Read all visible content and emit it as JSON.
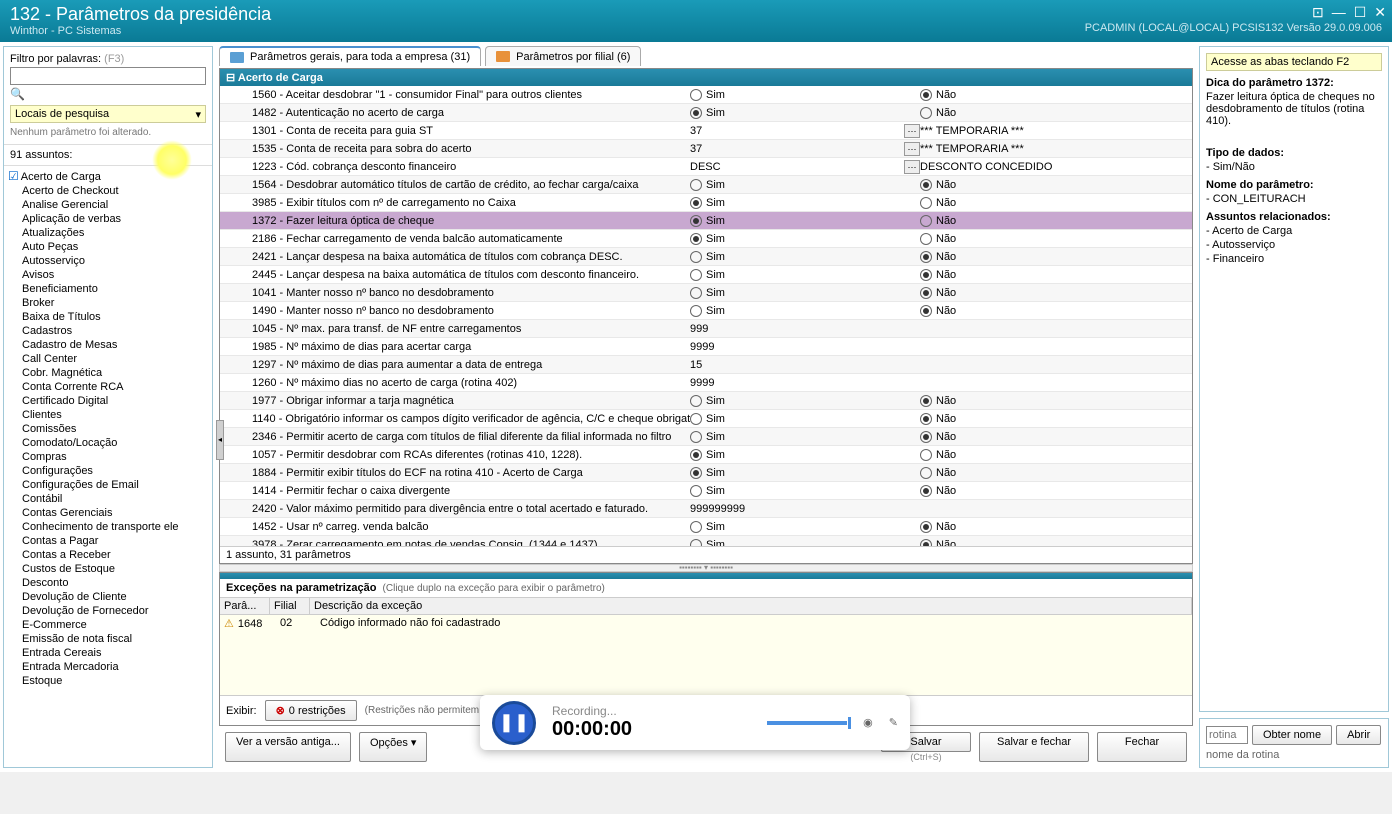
{
  "titlebar": {
    "title": "132 - Parâmetros da presidência",
    "subtitle": "Winthor - PC Sistemas",
    "right_info": "PCADMIN (LOCAL@LOCAL)   PCSIS132  Versão  29.0.09.006"
  },
  "filter": {
    "label": "Filtro por palavras:",
    "hint": "(F3)",
    "locais": "Locais de pesquisa",
    "status": "Nenhum parâmetro foi alterado."
  },
  "subjects": {
    "header": "91 assuntos:",
    "items": [
      {
        "label": "Acerto de Carga",
        "checked": true
      },
      {
        "label": "Acerto de Checkout"
      },
      {
        "label": "Analise Gerencial"
      },
      {
        "label": "Aplicação de verbas"
      },
      {
        "label": "Atualizações"
      },
      {
        "label": "Auto Peças"
      },
      {
        "label": "Autosserviço"
      },
      {
        "label": "Avisos"
      },
      {
        "label": "Beneficiamento"
      },
      {
        "label": "Broker"
      },
      {
        "label": "Baixa de Títulos"
      },
      {
        "label": "Cadastros"
      },
      {
        "label": "Cadastro de Mesas"
      },
      {
        "label": "Call Center"
      },
      {
        "label": "Cobr. Magnética"
      },
      {
        "label": "Conta Corrente RCA"
      },
      {
        "label": "Certificado Digital"
      },
      {
        "label": "Clientes"
      },
      {
        "label": "Comissões"
      },
      {
        "label": "Comodato/Locação"
      },
      {
        "label": "Compras"
      },
      {
        "label": "Configurações"
      },
      {
        "label": "Configurações de Email"
      },
      {
        "label": "Contábil"
      },
      {
        "label": "Contas Gerenciais"
      },
      {
        "label": "Conhecimento de transporte ele"
      },
      {
        "label": "Contas a Pagar"
      },
      {
        "label": "Contas a Receber"
      },
      {
        "label": "Custos de Estoque"
      },
      {
        "label": "Desconto"
      },
      {
        "label": "Devolução de Cliente"
      },
      {
        "label": "Devolução de Fornecedor"
      },
      {
        "label": "E-Commerce"
      },
      {
        "label": "Emissão de nota fiscal"
      },
      {
        "label": "Entrada Cereais"
      },
      {
        "label": "Entrada Mercadoria"
      },
      {
        "label": "Estoque"
      }
    ]
  },
  "tabs": {
    "gerais": "Parâmetros gerais, para toda a empresa  (31)",
    "filial": "Parâmetros por filial  (6)"
  },
  "grid": {
    "group_header": "Acerto de Carga",
    "rows": [
      {
        "desc": "1560 - Aceitar desdobrar \"1 - consumidor Final\" para outros clientes",
        "type": "radio",
        "sim": false,
        "nao": true
      },
      {
        "desc": "1482 - Autenticação no acerto de carga",
        "type": "radio",
        "sim": true,
        "nao": false
      },
      {
        "desc": "1301 - Conta de receita para guia ST",
        "type": "text",
        "val1": "37",
        "btn": true,
        "val2": "*** TEMPORARIA ***"
      },
      {
        "desc": "1535 - Conta de receita para sobra do acerto",
        "type": "text",
        "val1": "37",
        "btn": true,
        "val2": "*** TEMPORARIA ***"
      },
      {
        "desc": "1223 - Cód. cobrança desconto financeiro",
        "type": "text",
        "val1": "DESC",
        "btn": true,
        "val2": "DESCONTO CONCEDIDO"
      },
      {
        "desc": "1564 - Desdobrar automático títulos de cartão de crédito, ao fechar carga/caixa",
        "type": "radio",
        "sim": false,
        "nao": true
      },
      {
        "desc": "3985 - Exibir títulos com nº de carregamento no Caixa",
        "type": "radio",
        "sim": true,
        "nao": false
      },
      {
        "desc": "1372 - Fazer leitura óptica de cheque",
        "type": "radio",
        "sim": true,
        "nao": false,
        "selected": true
      },
      {
        "desc": "2186 - Fechar carregamento de venda balcão automaticamente",
        "type": "radio",
        "sim": true,
        "nao": false
      },
      {
        "desc": "2421 - Lançar despesa na baixa automática de títulos com cobrança DESC.",
        "type": "radio",
        "sim": false,
        "nao": true
      },
      {
        "desc": "2445 - Lançar despesa na baixa automática de títulos com desconto financeiro.",
        "type": "radio",
        "sim": false,
        "nao": true
      },
      {
        "desc": "1041 - Manter nosso nº banco no desdobramento",
        "type": "radio",
        "sim": false,
        "nao": true
      },
      {
        "desc": "1490 - Manter nosso nº banco no desdobramento",
        "type": "radio",
        "sim": false,
        "nao": true
      },
      {
        "desc": "1045 - Nº max. para transf. de NF entre carregamentos",
        "type": "text",
        "val1": "999"
      },
      {
        "desc": "1985 - Nº máximo de dias para acertar carga",
        "type": "text",
        "val1": "9999"
      },
      {
        "desc": "1297 - Nº máximo de dias para aumentar a data de entrega",
        "type": "text",
        "val1": "15"
      },
      {
        "desc": "1260 - Nº máximo dias no acerto de carga (rotina 402)",
        "type": "text",
        "val1": "9999"
      },
      {
        "desc": "1977 - Obrigar informar a tarja magnética",
        "type": "radio",
        "sim": false,
        "nao": true
      },
      {
        "desc": "1140 - Obrigatório informar os campos dígito verificador de agência, C/C e cheque obrigatório",
        "type": "radio",
        "sim": false,
        "nao": true
      },
      {
        "desc": "2346 - Permitir acerto de carga com títulos de filial diferente da filial informada no filtro",
        "type": "radio",
        "sim": false,
        "nao": true
      },
      {
        "desc": "1057 - Permitir desdobrar com RCAs diferentes (rotinas 410, 1228).",
        "type": "radio",
        "sim": true,
        "nao": false
      },
      {
        "desc": "1884 - Permitir exibir títulos do ECF na rotina 410 - Acerto de Carga",
        "type": "radio",
        "sim": true,
        "nao": false
      },
      {
        "desc": "1414 - Permitir fechar o caixa divergente",
        "type": "radio",
        "sim": false,
        "nao": true
      },
      {
        "desc": "    2420 - Valor máximo permitido para divergência entre o total acertado e faturado.",
        "type": "text",
        "val1": "999999999"
      },
      {
        "desc": "1452 - Usar nº carreg. venda balcão",
        "type": "radio",
        "sim": false,
        "nao": true
      },
      {
        "desc": "    3978 - Zerar carregamento em notas de vendas Consig. (1344 e 1437)",
        "type": "radio",
        "sim": false,
        "nao": true
      }
    ],
    "footer": "1 assunto, 31 parâmetros"
  },
  "exceptions": {
    "title": "Exceções na parametrização",
    "hint": "(Clique duplo na exceção para exibir o parâmetro)",
    "col_param": "Parâ...",
    "col_filial": "Filial",
    "col_desc": "Descrição da exceção",
    "row_param": "1648",
    "row_filial": "02",
    "row_desc": "Código informado não foi cadastrado"
  },
  "exhibit": {
    "label": "Exibir:",
    "restricoes": "0 restrições",
    "restricoes_hint": "(Restrições não permitem salvar)"
  },
  "buttons": {
    "versao": "Ver a versão antiga...",
    "opcoes": "Opções ▾",
    "salvar": "Salvar",
    "salvar_fechar": "Salvar e fechar",
    "fechar": "Fechar",
    "ctrl_s": "(Ctrl+S)"
  },
  "info": {
    "f2": "Acesse as abas teclando F2",
    "dica_label": "Dica do parâmetro 1372:",
    "dica_text": "Fazer leitura óptica de cheques no desdobramento de títulos (rotina 410).",
    "tipo_label": "Tipo de dados:",
    "tipo_val": "- Sim/Não",
    "nome_label": "Nome do parâmetro:",
    "nome_val": "- CON_LEITURACH",
    "assuntos_label": "Assuntos relacionados:",
    "assunto1": "- Acerto de Carga",
    "assunto2": "- Autosserviço",
    "assunto3": "- Financeiro"
  },
  "rotina": {
    "placeholder": "rotina",
    "obter": "Obter nome",
    "abrir": "Abrir",
    "nome": "nome da rotina"
  },
  "recorder": {
    "label": "Recording...",
    "time": "00:00:00"
  },
  "radio_labels": {
    "sim": "Sim",
    "nao": "Não"
  }
}
